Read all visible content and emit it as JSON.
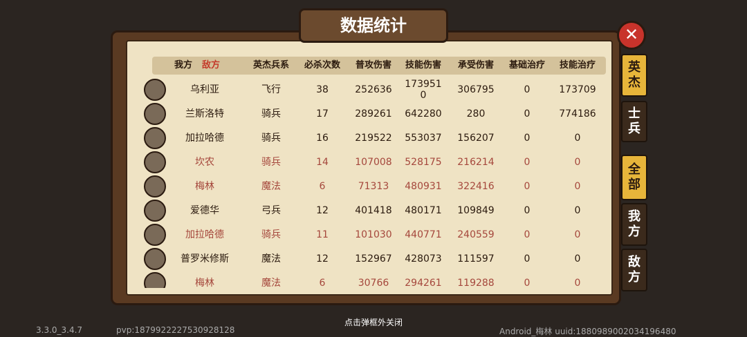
{
  "title": "数据统计",
  "header": {
    "side_tabs": [
      "我方",
      "敌方"
    ],
    "columns": [
      "英杰兵系",
      "必杀次数",
      "普攻伤害",
      "技能伤害",
      "承受伤害",
      "基础治疗",
      "技能治疗"
    ]
  },
  "table": {
    "rows": [
      [
        "乌利亚",
        "飞行",
        "38",
        "252636",
        "1739510",
        "306795",
        "0",
        "173709"
      ],
      [
        "兰斯洛特",
        "骑兵",
        "17",
        "289261",
        "642280",
        "280",
        "0",
        "774186"
      ],
      [
        "加拉哈德",
        "骑兵",
        "16",
        "219522",
        "553037",
        "156207",
        "0",
        "0"
      ],
      [
        "坎农",
        "骑兵",
        "14",
        "107008",
        "528175",
        "216214",
        "0",
        "0"
      ],
      [
        "梅林",
        "魔法",
        "6",
        "71313",
        "480931",
        "322416",
        "0",
        "0"
      ],
      [
        "爱德华",
        "弓兵",
        "12",
        "401418",
        "480171",
        "109849",
        "0",
        "0"
      ],
      [
        "加拉哈德",
        "骑兵",
        "11",
        "101030",
        "440771",
        "240559",
        "0",
        "0"
      ],
      [
        "普罗米修斯",
        "魔法",
        "12",
        "152967",
        "428073",
        "111597",
        "0",
        "0"
      ],
      [
        "梅林",
        "魔法",
        "6",
        "30766",
        "294261",
        "119288",
        "0",
        "0"
      ]
    ],
    "row_colors": [
      "#2b1a0e",
      "#2b1a0e",
      "#2b1a0e",
      "#a5473c",
      "#a5473c",
      "#2b1a0e",
      "#a5473c",
      "#2b1a0e",
      "#a5473c"
    ]
  },
  "tabs": {
    "type": [
      "英杰",
      "士兵"
    ],
    "filter": [
      "全部",
      "我方",
      "敌方"
    ]
  },
  "footer": {
    "hint": "点击弹框外关闭",
    "version": "3.3.0_3.4.7",
    "pvp": "pvp:1879922227530928128",
    "device": "Android_梅林 uuid:1880989002034196480"
  }
}
